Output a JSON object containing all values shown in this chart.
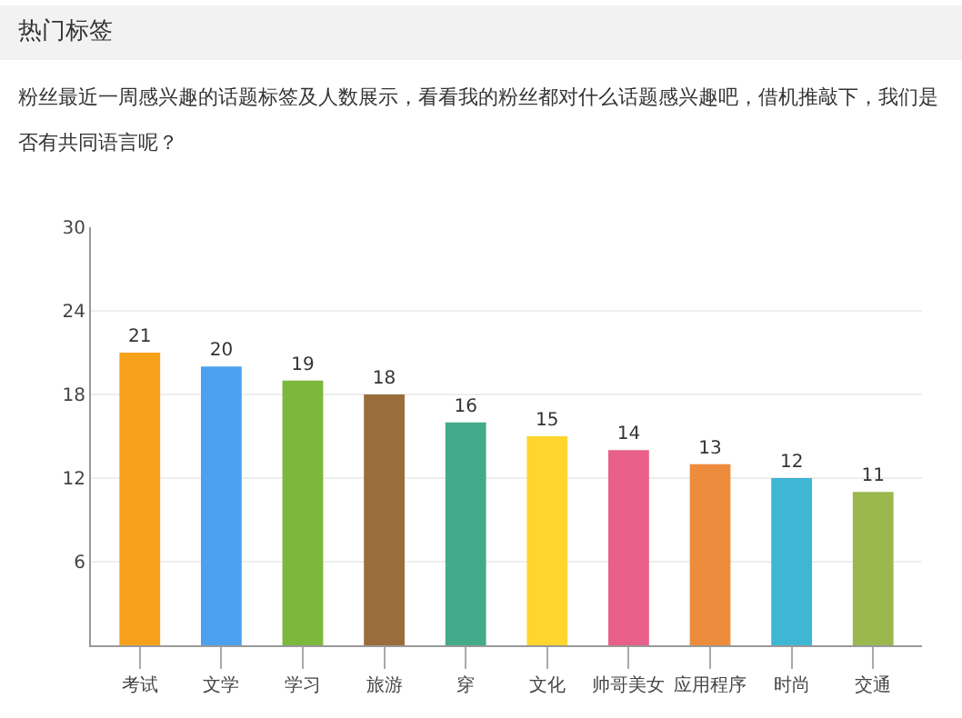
{
  "chart_data": {
    "type": "bar",
    "title": "热门标签",
    "subtitle": "粉丝最近一周感兴趣的话题标签及人数展示，看看我的粉丝都对什么话题感兴趣吧，借机推敲下，我们是否有共同语言呢？",
    "categories": [
      "考试",
      "文学",
      "学习",
      "旅游",
      "穿",
      "文化",
      "帅哥美女",
      "应用程序",
      "时尚",
      "交通"
    ],
    "values": [
      21,
      20,
      19,
      18,
      16,
      15,
      14,
      13,
      12,
      11
    ],
    "colors": [
      "#f7a11a",
      "#4da0ee",
      "#7cb83b",
      "#9a6e3a",
      "#45aa8a",
      "#ffd52e",
      "#e8608a",
      "#ee8c3e",
      "#3fb6d4",
      "#9ab84e"
    ],
    "ylim": [
      0,
      30
    ],
    "yticks": [
      {
        "value": 0,
        "label": null
      },
      6,
      12,
      18,
      24,
      30
    ],
    "grid": "y",
    "data_labels": true
  }
}
